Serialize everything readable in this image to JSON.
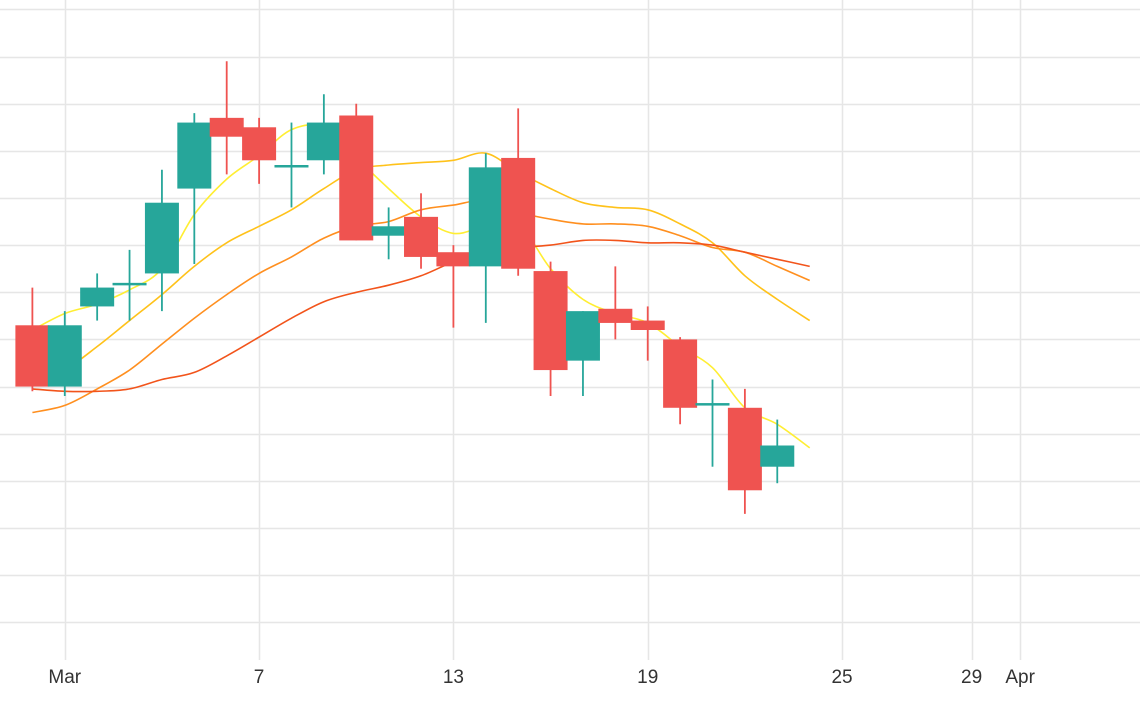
{
  "chart_data": {
    "type": "candlestick",
    "title": "",
    "xlabel": "",
    "ylabel": "",
    "x_ticks": [
      {
        "label": "Mar",
        "day": 1
      },
      {
        "label": "7",
        "day": 7
      },
      {
        "label": "13",
        "day": 13
      },
      {
        "label": "19",
        "day": 19
      },
      {
        "label": "25",
        "day": 25
      },
      {
        "label": "29",
        "day": 29
      },
      {
        "label": "Apr",
        "day": 30.5
      }
    ],
    "xlim": [
      -1,
      34.2
    ],
    "ylim": [
      -0.8,
      13.2
    ],
    "grid": true,
    "legend": "none",
    "colors": {
      "up": "#26a69a",
      "down": "#ef5350",
      "ma_fast": "#ffee33",
      "ma_medium": "#ffc21a",
      "ma_slow": "#ff8f1f",
      "ma_slowest": "#f2541b",
      "grid": "#e6e6e6"
    },
    "candles": [
      {
        "day": 0.0,
        "open": 6.3,
        "high": 7.1,
        "low": 4.9,
        "close": 5.0
      },
      {
        "day": 1.0,
        "open": 5.0,
        "high": 6.6,
        "low": 4.8,
        "close": 6.3
      },
      {
        "day": 2.0,
        "open": 6.7,
        "high": 7.4,
        "low": 6.4,
        "close": 7.1
      },
      {
        "day": 3.0,
        "open": 7.2,
        "high": 7.9,
        "low": 6.4,
        "close": 7.2
      },
      {
        "day": 4.0,
        "open": 7.4,
        "high": 9.6,
        "low": 6.6,
        "close": 8.9
      },
      {
        "day": 5.0,
        "open": 9.2,
        "high": 10.8,
        "low": 7.6,
        "close": 10.6
      },
      {
        "day": 6.0,
        "open": 10.7,
        "high": 11.9,
        "low": 9.5,
        "close": 10.3
      },
      {
        "day": 7.0,
        "open": 10.5,
        "high": 10.7,
        "low": 9.3,
        "close": 9.8
      },
      {
        "day": 8.0,
        "open": 9.7,
        "high": 10.6,
        "low": 8.8,
        "close": 9.7
      },
      {
        "day": 9.0,
        "open": 9.8,
        "high": 11.2,
        "low": 9.5,
        "close": 10.6
      },
      {
        "day": 10.0,
        "open": 10.75,
        "high": 11.0,
        "low": 8.1,
        "close": 8.1
      },
      {
        "day": 11.0,
        "open": 8.2,
        "high": 8.8,
        "low": 7.7,
        "close": 8.4
      },
      {
        "day": 12.0,
        "open": 8.6,
        "high": 9.1,
        "low": 7.5,
        "close": 7.75
      },
      {
        "day": 13.0,
        "open": 7.85,
        "high": 8.0,
        "low": 6.25,
        "close": 7.55
      },
      {
        "day": 14.0,
        "open": 7.55,
        "high": 9.95,
        "low": 6.35,
        "close": 9.65
      },
      {
        "day": 15.0,
        "open": 9.85,
        "high": 10.9,
        "low": 7.35,
        "close": 7.5
      },
      {
        "day": 16.0,
        "open": 7.45,
        "high": 7.65,
        "low": 4.8,
        "close": 5.35
      },
      {
        "day": 17.0,
        "open": 5.55,
        "high": 6.6,
        "low": 4.8,
        "close": 6.6
      },
      {
        "day": 18.0,
        "open": 6.65,
        "high": 7.55,
        "low": 6.0,
        "close": 6.35
      },
      {
        "day": 19.0,
        "open": 6.4,
        "high": 6.7,
        "low": 5.55,
        "close": 6.2
      },
      {
        "day": 20.0,
        "open": 6.0,
        "high": 6.05,
        "low": 4.2,
        "close": 4.55
      },
      {
        "day": 21.0,
        "open": 4.65,
        "high": 5.15,
        "low": 3.3,
        "close": 4.65
      },
      {
        "day": 22.0,
        "open": 4.55,
        "high": 4.95,
        "low": 2.3,
        "close": 2.8
      },
      {
        "day": 23.0,
        "open": 3.3,
        "high": 4.3,
        "low": 2.95,
        "close": 3.75
      }
    ],
    "moving_averages": [
      {
        "color": "#ffee33",
        "points": [
          [
            0,
            6.2
          ],
          [
            1,
            6.55
          ],
          [
            2,
            6.75
          ],
          [
            3,
            7.05
          ],
          [
            4,
            7.5
          ],
          [
            5,
            8.65
          ],
          [
            6,
            9.4
          ],
          [
            7,
            9.9
          ],
          [
            8,
            10.45
          ],
          [
            9,
            10.5
          ],
          [
            10,
            9.85
          ],
          [
            11,
            9.2
          ],
          [
            12,
            8.6
          ],
          [
            13,
            8.25
          ],
          [
            14,
            8.4
          ],
          [
            15,
            8.45
          ],
          [
            16,
            7.5
          ],
          [
            17,
            6.85
          ],
          [
            18,
            6.55
          ],
          [
            19,
            6.35
          ],
          [
            20,
            5.85
          ],
          [
            21,
            5.4
          ],
          [
            22,
            4.55
          ],
          [
            23,
            4.2
          ],
          [
            24,
            3.7
          ]
        ]
      },
      {
        "color": "#ffc21a",
        "points": [
          [
            0,
            5.05
          ],
          [
            1,
            5.35
          ],
          [
            2,
            5.85
          ],
          [
            3,
            6.4
          ],
          [
            4,
            6.95
          ],
          [
            5,
            7.55
          ],
          [
            6,
            8.05
          ],
          [
            7,
            8.4
          ],
          [
            8,
            8.75
          ],
          [
            9,
            9.2
          ],
          [
            10,
            9.6
          ],
          [
            11,
            9.7
          ],
          [
            12,
            9.75
          ],
          [
            13,
            9.8
          ],
          [
            14,
            9.95
          ],
          [
            15,
            9.55
          ],
          [
            16,
            9.2
          ],
          [
            17,
            8.9
          ],
          [
            18,
            8.8
          ],
          [
            19,
            8.75
          ],
          [
            20,
            8.45
          ],
          [
            21,
            8.05
          ],
          [
            22,
            7.35
          ],
          [
            23,
            6.85
          ],
          [
            24,
            6.4
          ]
        ]
      },
      {
        "color": "#ff8f1f",
        "points": [
          [
            0,
            4.45
          ],
          [
            1,
            4.6
          ],
          [
            2,
            4.95
          ],
          [
            3,
            5.35
          ],
          [
            4,
            5.9
          ],
          [
            5,
            6.45
          ],
          [
            6,
            6.95
          ],
          [
            7,
            7.4
          ],
          [
            8,
            7.75
          ],
          [
            9,
            8.15
          ],
          [
            10,
            8.4
          ],
          [
            11,
            8.5
          ],
          [
            12,
            8.75
          ],
          [
            13,
            8.85
          ],
          [
            14,
            8.95
          ],
          [
            15,
            8.7
          ],
          [
            16,
            8.55
          ],
          [
            17,
            8.45
          ],
          [
            18,
            8.45
          ],
          [
            19,
            8.4
          ],
          [
            20,
            8.2
          ],
          [
            21,
            7.95
          ],
          [
            22,
            7.85
          ],
          [
            23,
            7.55
          ],
          [
            24,
            7.25
          ]
        ]
      },
      {
        "color": "#f2541b",
        "points": [
          [
            0,
            4.95
          ],
          [
            1,
            4.9
          ],
          [
            2,
            4.9
          ],
          [
            3,
            4.95
          ],
          [
            4,
            5.15
          ],
          [
            5,
            5.3
          ],
          [
            6,
            5.65
          ],
          [
            7,
            6.05
          ],
          [
            8,
            6.45
          ],
          [
            9,
            6.8
          ],
          [
            10,
            7.0
          ],
          [
            11,
            7.15
          ],
          [
            12,
            7.35
          ],
          [
            13,
            7.65
          ],
          [
            14,
            7.9
          ],
          [
            15,
            7.95
          ],
          [
            16,
            8.0
          ],
          [
            17,
            8.1
          ],
          [
            18,
            8.1
          ],
          [
            19,
            8.05
          ],
          [
            20,
            8.05
          ],
          [
            21,
            8.0
          ],
          [
            22,
            7.85
          ],
          [
            23,
            7.7
          ],
          [
            24,
            7.55
          ]
        ]
      }
    ]
  }
}
